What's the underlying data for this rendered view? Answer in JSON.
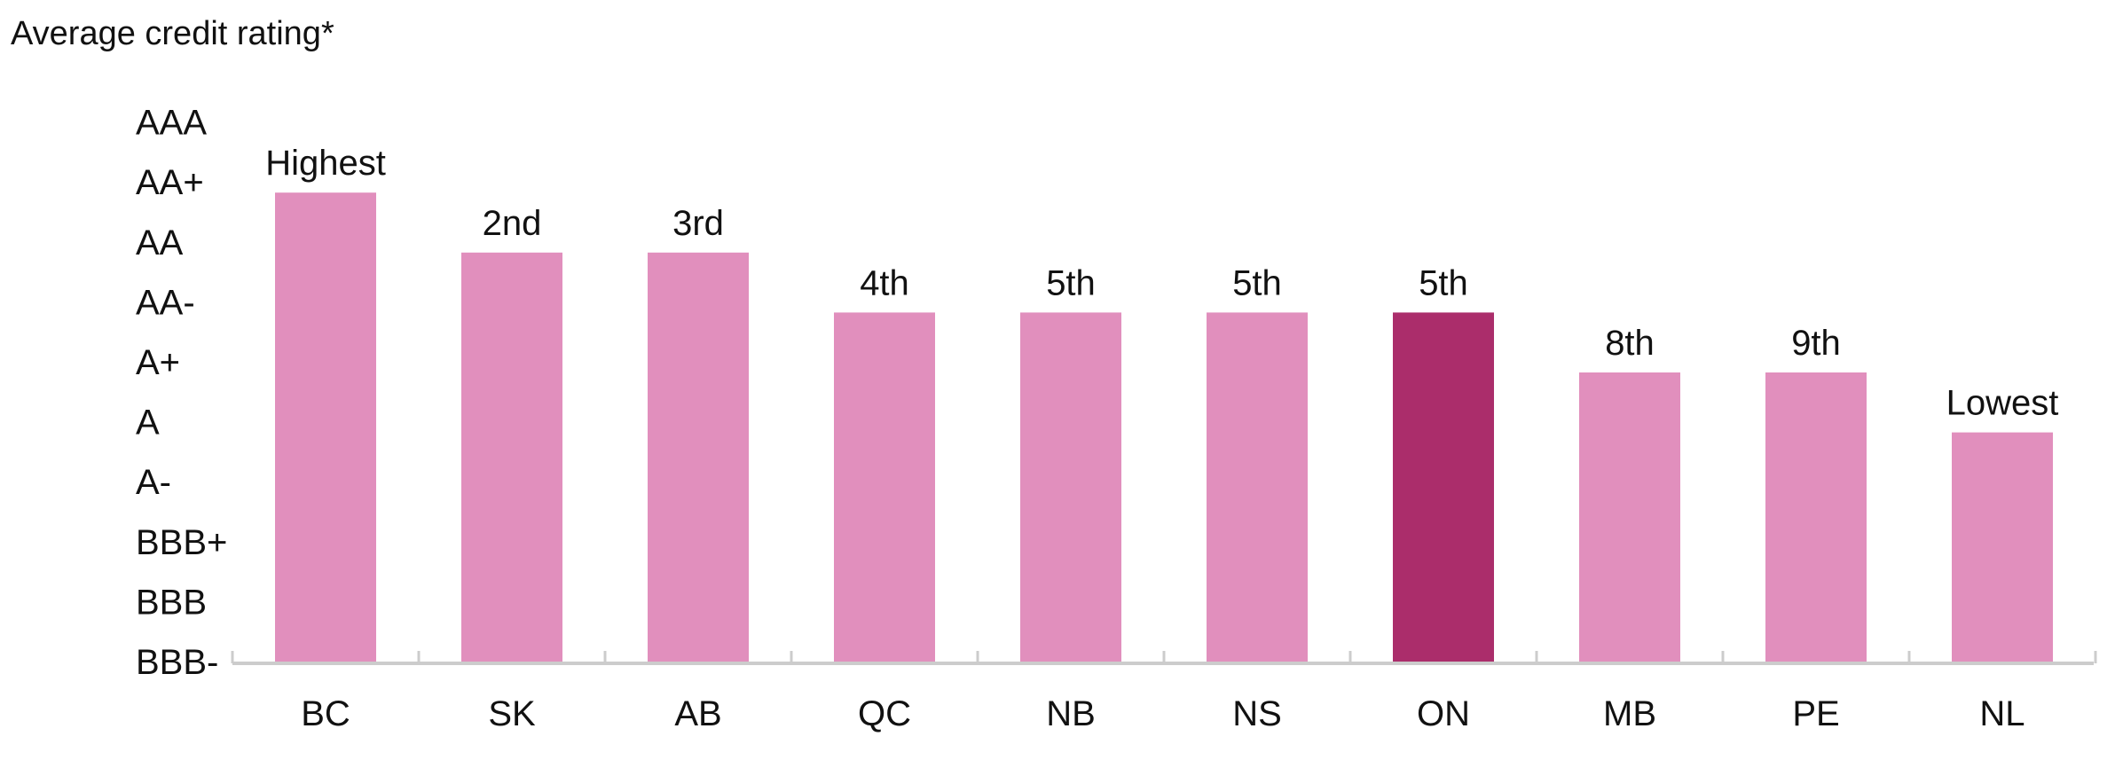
{
  "chart_data": {
    "type": "bar",
    "title": "Average credit rating*",
    "xlabel": "",
    "ylabel": "",
    "y_scale": [
      "BBB-",
      "BBB",
      "BBB+",
      "A-",
      "A",
      "A+",
      "AA-",
      "AA",
      "AA+",
      "AAA"
    ],
    "categories": [
      "BC",
      "SK",
      "AB",
      "QC",
      "NB",
      "NS",
      "ON",
      "MB",
      "PE",
      "NL"
    ],
    "values": [
      "AA+",
      "AA",
      "AA",
      "AA-",
      "AA-",
      "AA-",
      "AA-",
      "A+",
      "A+",
      "A"
    ],
    "rank_labels": [
      "Highest",
      "2nd",
      "3rd",
      "4th",
      "5th",
      "5th",
      "5th",
      "8th",
      "9th",
      "Lowest"
    ],
    "highlight_category": "ON",
    "grid": false,
    "colors": {
      "bar": "#e18fbd",
      "highlight": "#ab2d6b",
      "axis": "#cccccc",
      "text": "#111111"
    }
  }
}
